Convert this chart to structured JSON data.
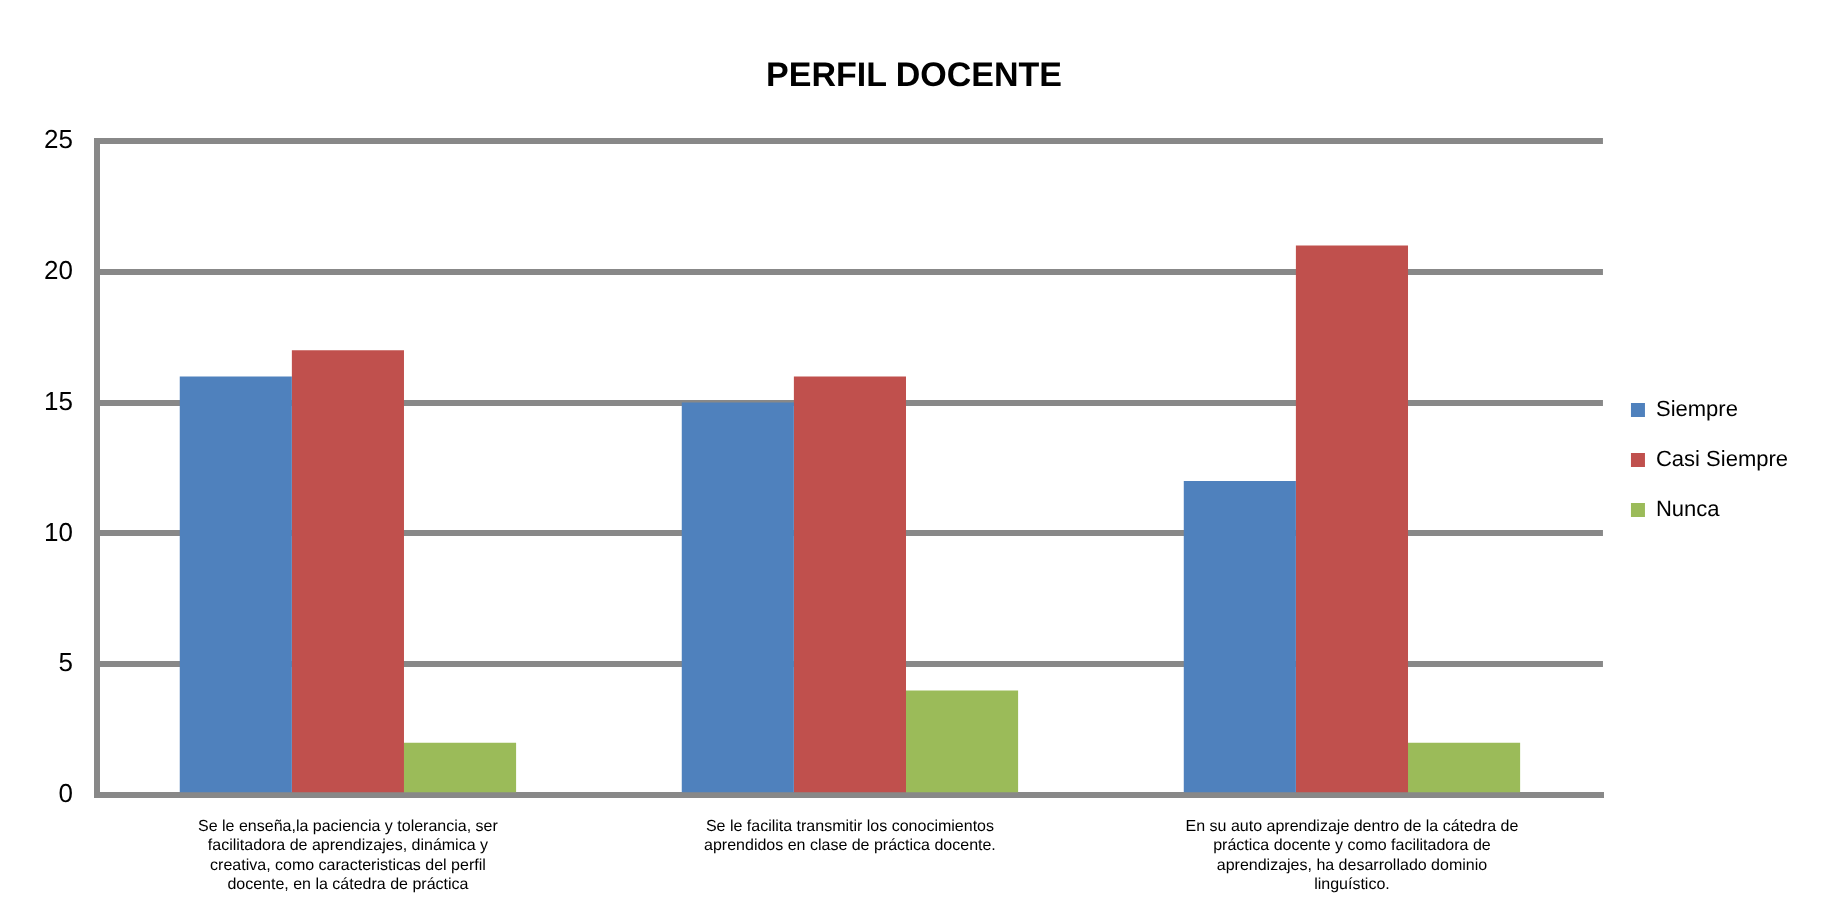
{
  "chart_data": {
    "type": "bar",
    "title": "PERFIL DOCENTE",
    "categories": [
      "Se le enseña,la paciencia y tolerancia, ser facilitadora de aprendizajes, dinámica y creativa, como caracteristicas del perfil docente, en la cátedra de práctica",
      "Se le facilita transmitir los conocimientos aprendidos en clase de práctica docente.",
      "En su auto aprendizaje dentro de la cátedra de práctica docente y como facilitadora de aprendizajes, ha desarrollado dominio linguístico."
    ],
    "series": [
      {
        "name": "Siempre",
        "color": "#4f81bd",
        "values": [
          16,
          15,
          12
        ]
      },
      {
        "name": "Casi Siempre",
        "color": "#c0504d",
        "values": [
          17,
          16,
          21
        ]
      },
      {
        "name": "Nunca",
        "color": "#9bbb59",
        "values": [
          2,
          4,
          2
        ]
      }
    ],
    "ylim": [
      0,
      25
    ],
    "yticks": [
      0,
      5,
      10,
      15,
      20,
      25
    ],
    "grid": "y",
    "legend": "right"
  }
}
